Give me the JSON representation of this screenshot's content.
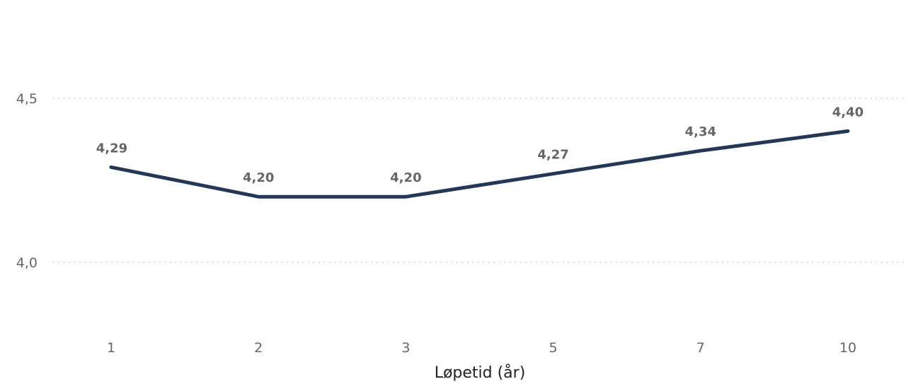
{
  "chart_data": {
    "type": "line",
    "title": "",
    "xlabel": "Løpetid (år)",
    "ylabel": "",
    "categories": [
      "1",
      "2",
      "3",
      "5",
      "7",
      "10"
    ],
    "series": [
      {
        "values": [
          4.29,
          4.2,
          4.2,
          4.27,
          4.34,
          4.4
        ],
        "data_labels": [
          "4,29",
          "4,20",
          "4,20",
          "4,27",
          "4,34",
          "4,40"
        ],
        "color": "#253759"
      }
    ],
    "yticks": [
      {
        "value": 4.0,
        "label": "4,0"
      },
      {
        "value": 4.5,
        "label": "4,5"
      }
    ],
    "grid": true,
    "legend": "none"
  }
}
